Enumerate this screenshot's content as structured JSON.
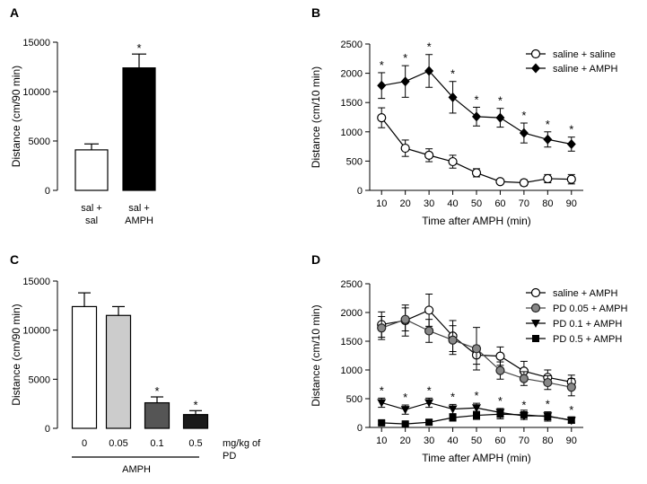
{
  "chart_data": [
    {
      "panel": "A",
      "type": "bar",
      "ylabel": "Distance (cm/90 min)",
      "ylim": [
        0,
        15000
      ],
      "yticks": [
        0,
        5000,
        10000,
        15000
      ],
      "categories": [
        [
          "sal +",
          "sal"
        ],
        [
          "sal +",
          "AMPH"
        ]
      ],
      "values": [
        4100,
        12400
      ],
      "errors": [
        600,
        1400
      ],
      "colors": [
        "#ffffff",
        "#000000"
      ],
      "significance": [
        false,
        true
      ],
      "sig_symbol": "*"
    },
    {
      "panel": "B",
      "type": "line",
      "xlabel": "Time after AMPH (min)",
      "ylabel": "Distance (cm/10 min)",
      "x": [
        10,
        20,
        30,
        40,
        50,
        60,
        70,
        80,
        90
      ],
      "xlim": [
        5,
        95
      ],
      "ylim": [
        0,
        2500
      ],
      "yticks": [
        0,
        500,
        1000,
        1500,
        2000,
        2500
      ],
      "legend": "top-right",
      "series": [
        {
          "name": "saline + saline",
          "marker": "circle-open",
          "values": [
            1240,
            720,
            600,
            490,
            300,
            150,
            130,
            200,
            190
          ],
          "errors": [
            170,
            140,
            110,
            110,
            70,
            30,
            50,
            70,
            80
          ]
        },
        {
          "name": "saline + AMPH",
          "marker": "diamond-filled",
          "values": [
            1790,
            1860,
            2040,
            1590,
            1260,
            1240,
            980,
            870,
            790
          ],
          "errors": [
            220,
            270,
            280,
            270,
            160,
            160,
            170,
            130,
            120
          ]
        }
      ],
      "sig_x": [
        10,
        20,
        30,
        40,
        50,
        60,
        70,
        80,
        90
      ],
      "sig_symbol": "*"
    },
    {
      "panel": "C",
      "type": "bar",
      "ylabel": "Distance (cm/90 min)",
      "ylim": [
        0,
        15000
      ],
      "yticks": [
        0,
        5000,
        10000,
        15000
      ],
      "categories": [
        "0",
        "0.05",
        "0.1",
        "0.5"
      ],
      "values": [
        12400,
        11500,
        2600,
        1400
      ],
      "errors": [
        1400,
        900,
        600,
        400
      ],
      "colors": [
        "#ffffff",
        "#cccccc",
        "#555555",
        "#1a1a1a"
      ],
      "significance": [
        false,
        false,
        true,
        true
      ],
      "sig_symbol": "*",
      "unit_label": [
        "mg/kg of",
        "PD"
      ],
      "group_label": "AMPH"
    },
    {
      "panel": "D",
      "type": "line",
      "xlabel": "Time after AMPH (min)",
      "ylabel": "Distance (cm/10 min)",
      "x": [
        10,
        20,
        30,
        40,
        50,
        60,
        70,
        80,
        90
      ],
      "xlim": [
        5,
        95
      ],
      "ylim": [
        0,
        2500
      ],
      "yticks": [
        0,
        500,
        1000,
        1500,
        2000,
        2500
      ],
      "legend": "top-right",
      "series": [
        {
          "name": "saline + AMPH",
          "marker": "circle-open",
          "values": [
            1790,
            1860,
            2040,
            1590,
            1260,
            1240,
            980,
            870,
            790
          ],
          "errors": [
            220,
            270,
            280,
            270,
            160,
            160,
            170,
            130,
            120
          ]
        },
        {
          "name": "PD 0.05 + AMPH",
          "marker": "circle-gray",
          "values": [
            1730,
            1880,
            1680,
            1520,
            1370,
            990,
            850,
            780,
            700
          ],
          "errors": [
            200,
            200,
            200,
            250,
            370,
            150,
            120,
            120,
            150
          ]
        },
        {
          "name": "PD 0.1 + AMPH",
          "marker": "triangle-down",
          "values": [
            430,
            310,
            430,
            320,
            340,
            260,
            200,
            200,
            120
          ],
          "errors": [
            80,
            80,
            80,
            80,
            80,
            70,
            60,
            70,
            50
          ]
        },
        {
          "name": "PD 0.5 + AMPH",
          "marker": "square",
          "values": [
            80,
            60,
            90,
            170,
            210,
            230,
            220,
            190,
            130
          ],
          "errors": [
            30,
            30,
            40,
            60,
            70,
            80,
            80,
            80,
            50
          ]
        }
      ],
      "sig_x": [
        10,
        20,
        30,
        40,
        50,
        60,
        70,
        80,
        90
      ],
      "sig_symbol": "*"
    }
  ]
}
